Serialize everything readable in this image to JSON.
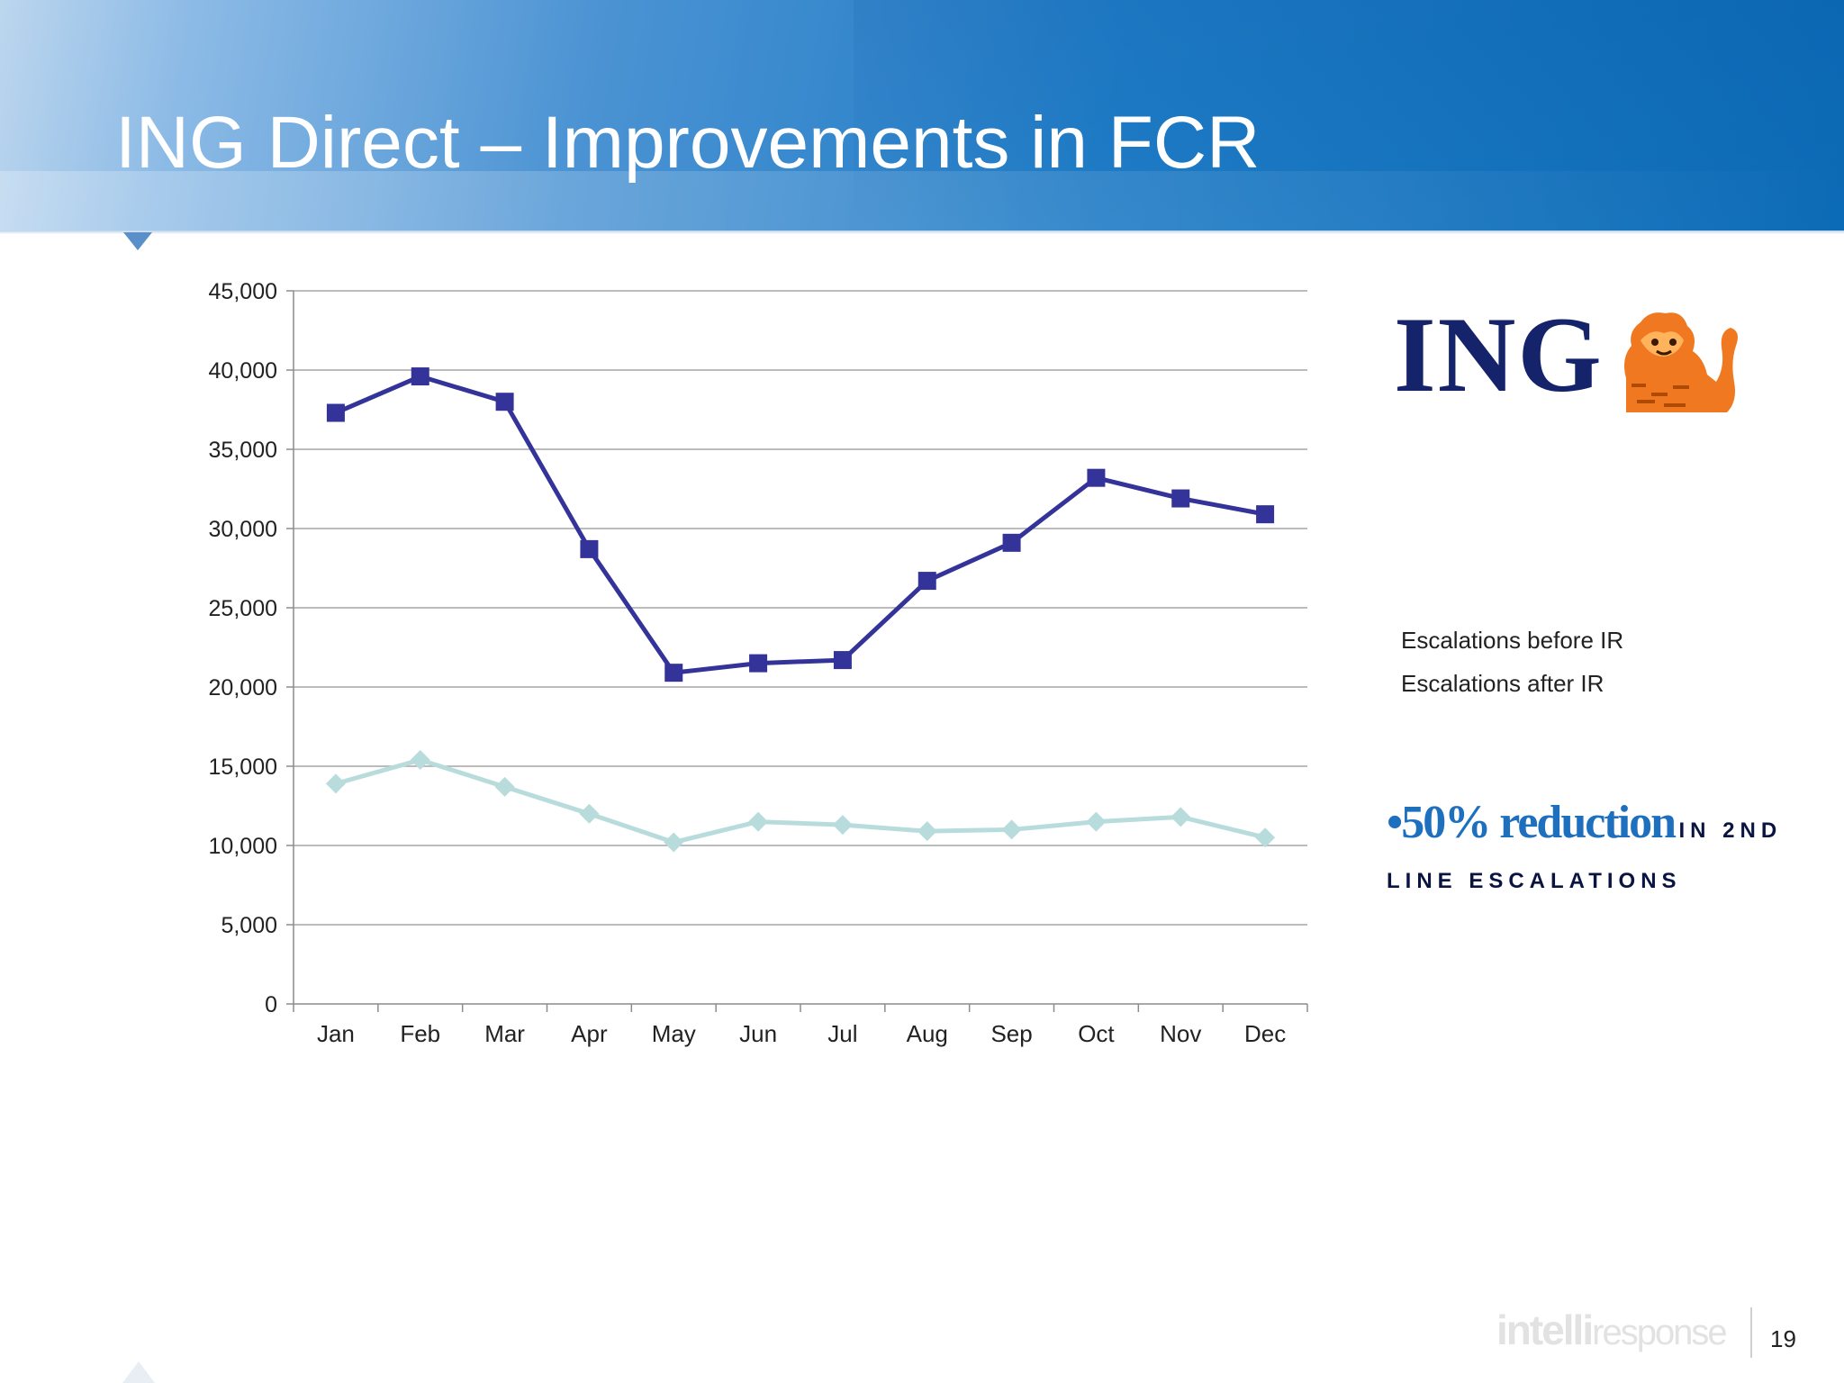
{
  "slide": {
    "title": "ING Direct – Improvements in FCR",
    "page_number": "19"
  },
  "logo": {
    "text": "ING",
    "brand_color": "#14236a",
    "lion_color": "#f07820"
  },
  "callout": {
    "highlight": "•50% reduction",
    "rest_line1": "in 2nd",
    "rest_line2": "line escalations"
  },
  "footer": {
    "brand_bold": "intelli",
    "brand_light": "response"
  },
  "chart_data": {
    "type": "line",
    "categories": [
      "Jan",
      "Feb",
      "Mar",
      "Apr",
      "May",
      "Jun",
      "Jul",
      "Aug",
      "Sep",
      "Oct",
      "Nov",
      "Dec"
    ],
    "series": [
      {
        "name": "Escalations before IR",
        "color": "#333399",
        "marker": "square",
        "values": [
          37300,
          39600,
          38000,
          28700,
          20900,
          21500,
          21700,
          26700,
          29100,
          33200,
          31900,
          30900
        ]
      },
      {
        "name": "Escalations after IR",
        "color": "#b8dcdc",
        "marker": "diamond",
        "values": [
          13900,
          15400,
          13700,
          12000,
          10200,
          11500,
          11300,
          10900,
          11000,
          11500,
          11800,
          10500
        ]
      }
    ],
    "ylim": [
      0,
      45000
    ],
    "yticks": [
      0,
      5000,
      10000,
      15000,
      20000,
      25000,
      30000,
      35000,
      40000,
      45000
    ],
    "ytick_labels": [
      "0",
      "5,000",
      "10,000",
      "15,000",
      "20,000",
      "25,000",
      "30,000",
      "35,000",
      "40,000",
      "45,000"
    ],
    "grid": true,
    "legend": "right"
  }
}
